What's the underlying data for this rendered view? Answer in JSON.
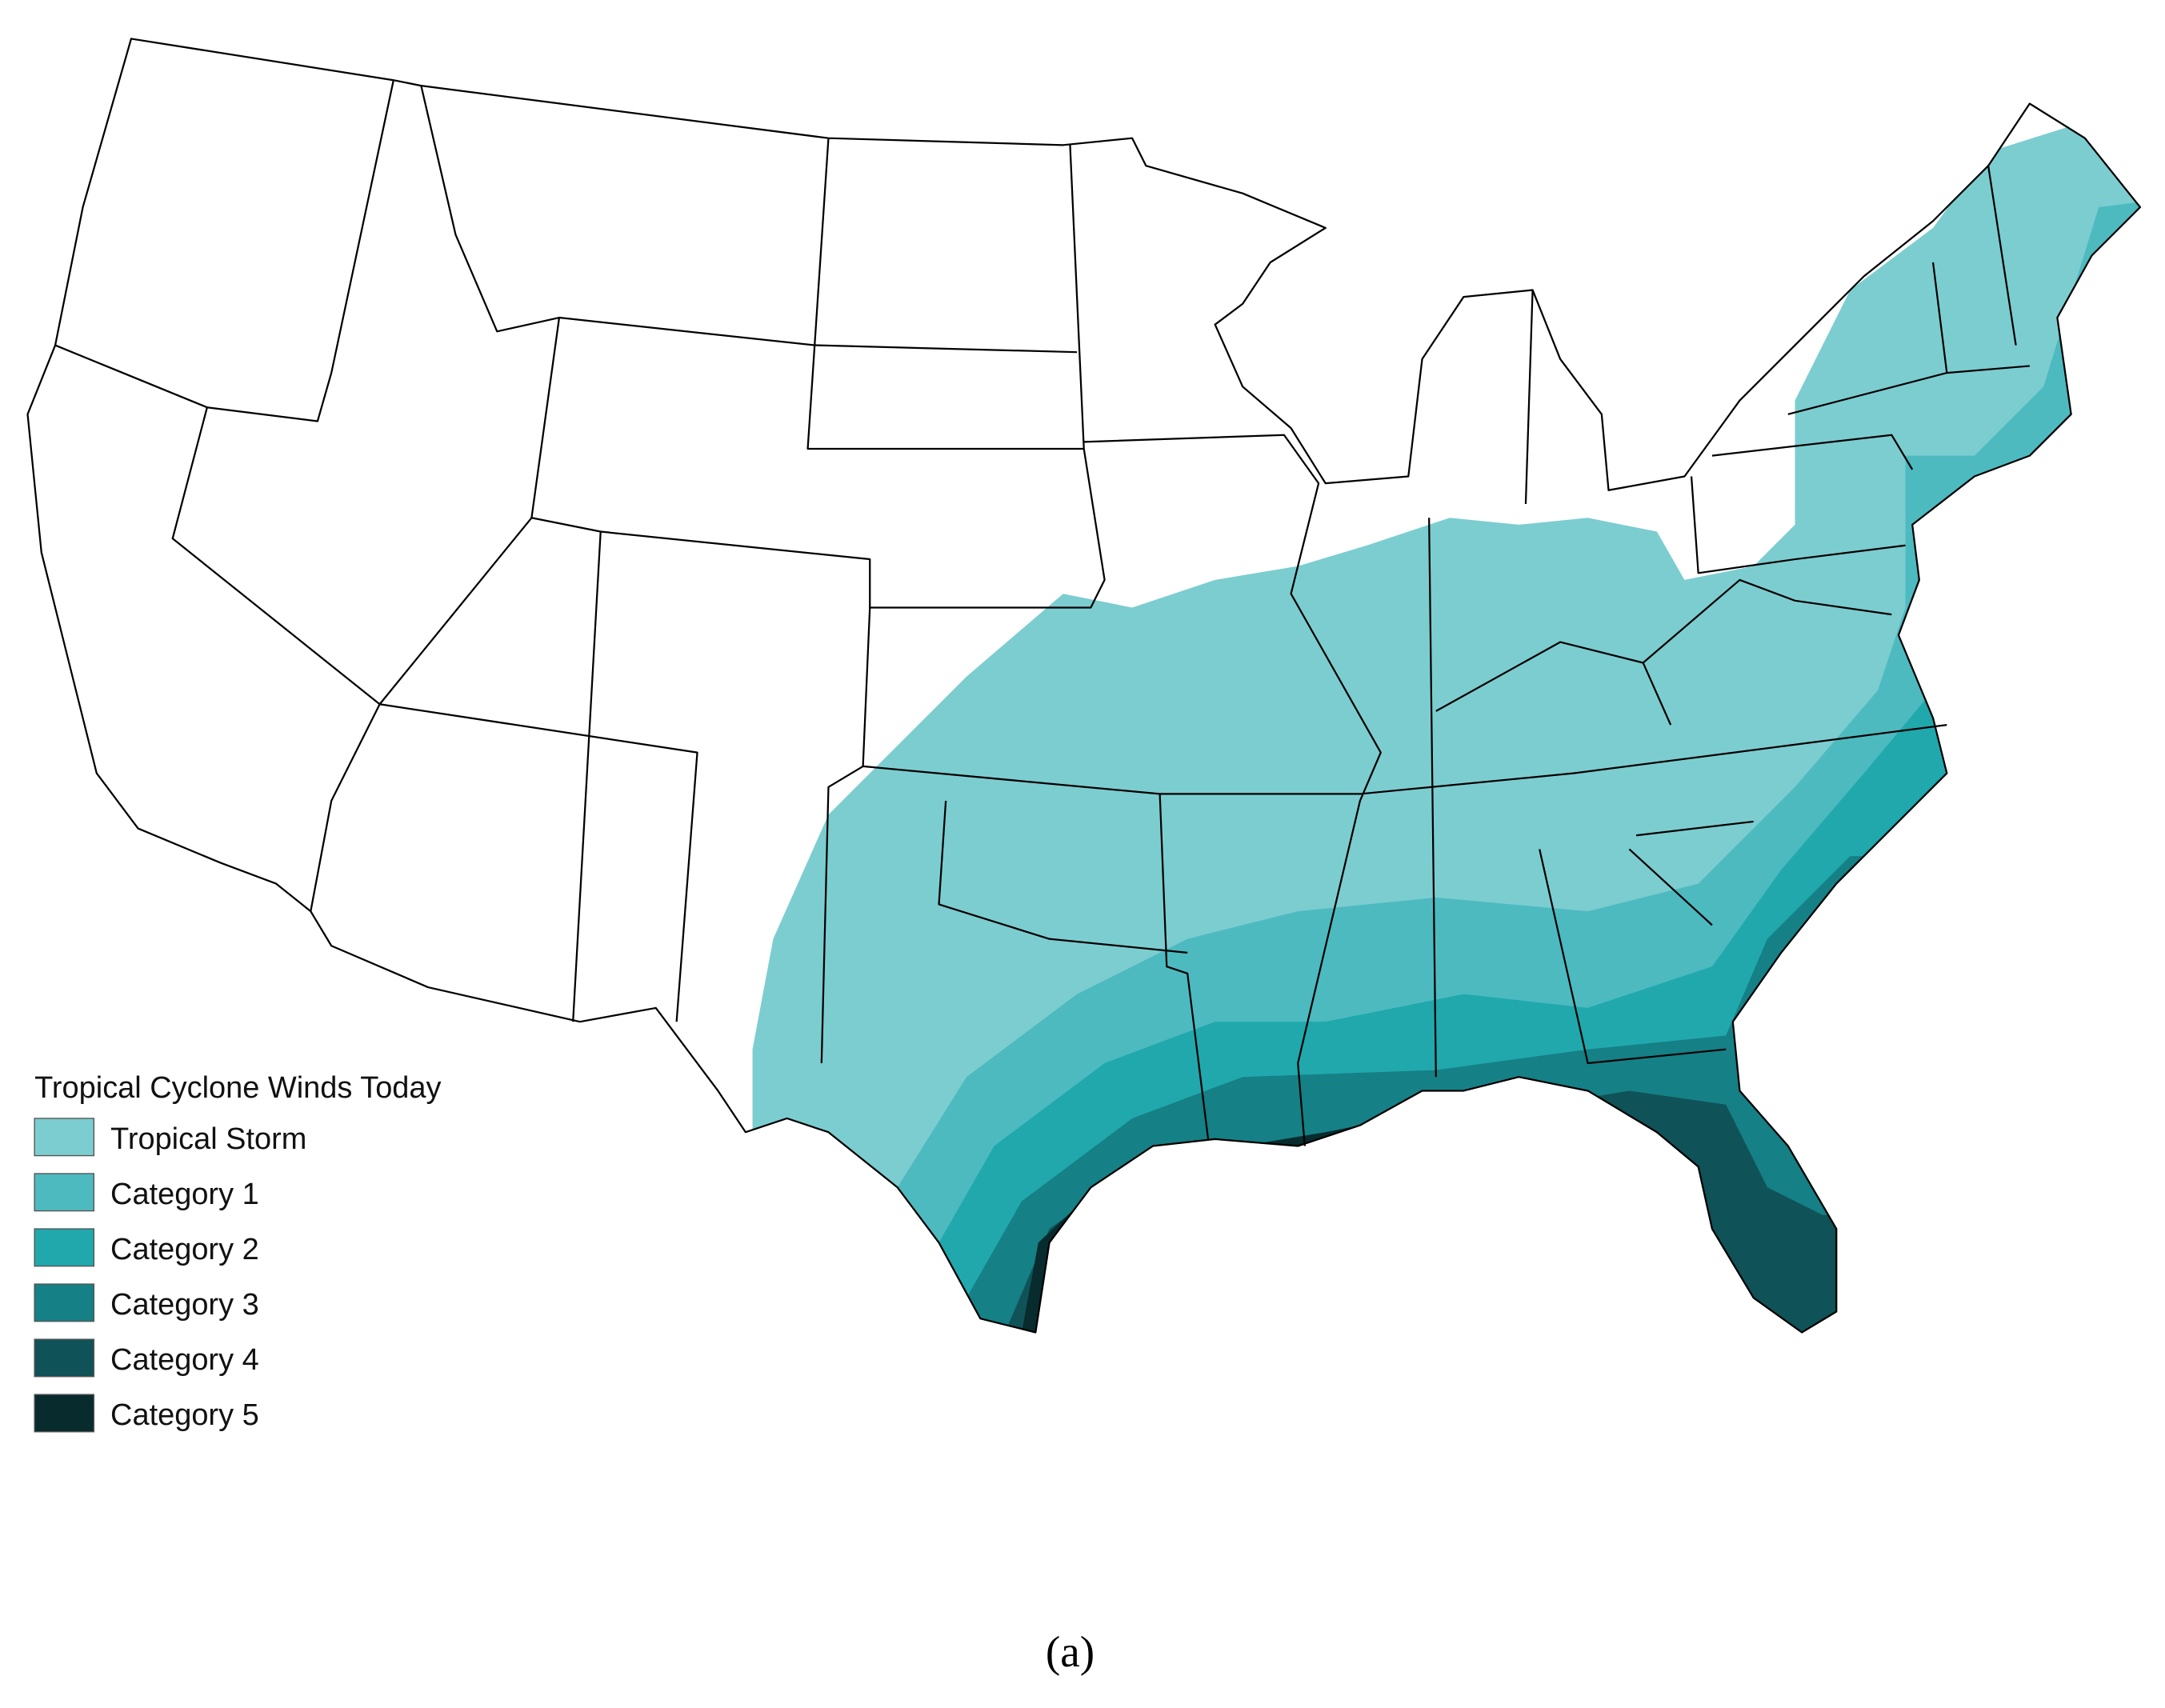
{
  "legend": {
    "title": "Tropical Cyclone Winds Today",
    "items": [
      {
        "label": "Tropical Storm",
        "color": "#7ccdd0"
      },
      {
        "label": "Category 1",
        "color": "#4dbac0"
      },
      {
        "label": "Category 2",
        "color": "#20a8ad"
      },
      {
        "label": "Category 3",
        "color": "#158085"
      },
      {
        "label": "Category 4",
        "color": "#0f5257"
      },
      {
        "label": "Category 5",
        "color": "#082b2e"
      }
    ]
  },
  "caption": "(a)"
}
